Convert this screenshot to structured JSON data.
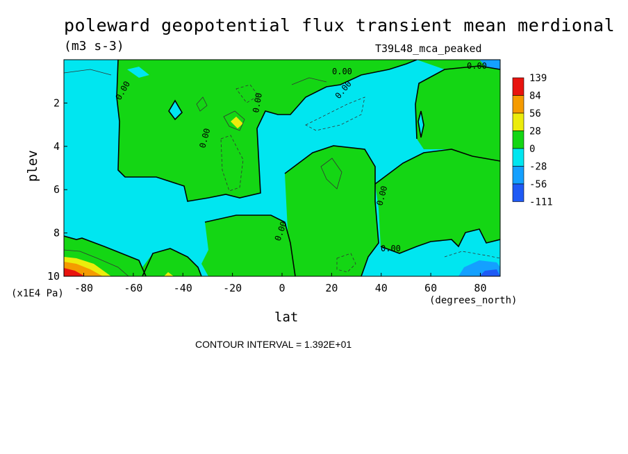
{
  "chart_data": {
    "type": "heatmap",
    "title": "poleward geopotential flux transient mean merdional",
    "units": "(m3 s-3)",
    "dataset": "T39L48_mca_peaked",
    "xlabel": "lat",
    "xunits": "(degrees_north)",
    "ylabel": "plev",
    "yscale_note": "(x1E4 Pa)",
    "contour_interval_text": "CONTOUR INTERVAL = 1.392E+01",
    "x_range": [
      -88,
      88
    ],
    "y_range": [
      0,
      10
    ],
    "y_inverted": true,
    "x_ticks": [
      -80,
      -60,
      -40,
      -20,
      0,
      20,
      40,
      60,
      80
    ],
    "y_ticks": [
      2,
      4,
      6,
      8,
      10
    ],
    "contour_label": "0.00",
    "colorbar": {
      "labels": [
        "139",
        "84",
        "56",
        "28",
        "0",
        "-28",
        "-56",
        "-111"
      ],
      "colors": [
        "#e8140f",
        "#f59b00",
        "#ecec0c",
        "#14d614",
        "#00e6f0",
        "#14a0ff",
        "#1e5af5"
      ]
    },
    "features": [
      {
        "name": "southern max",
        "lat": -84,
        "plev": 9.9,
        "value": 139
      },
      {
        "name": "upper trop min",
        "lat": 84,
        "plev": 0.1,
        "value": -56
      },
      {
        "name": "lower trop min",
        "lat": 83,
        "plev": 9.8,
        "value": -56
      },
      {
        "name": "local max",
        "lat": -17,
        "plev": 2.9,
        "value": 56
      }
    ]
  }
}
